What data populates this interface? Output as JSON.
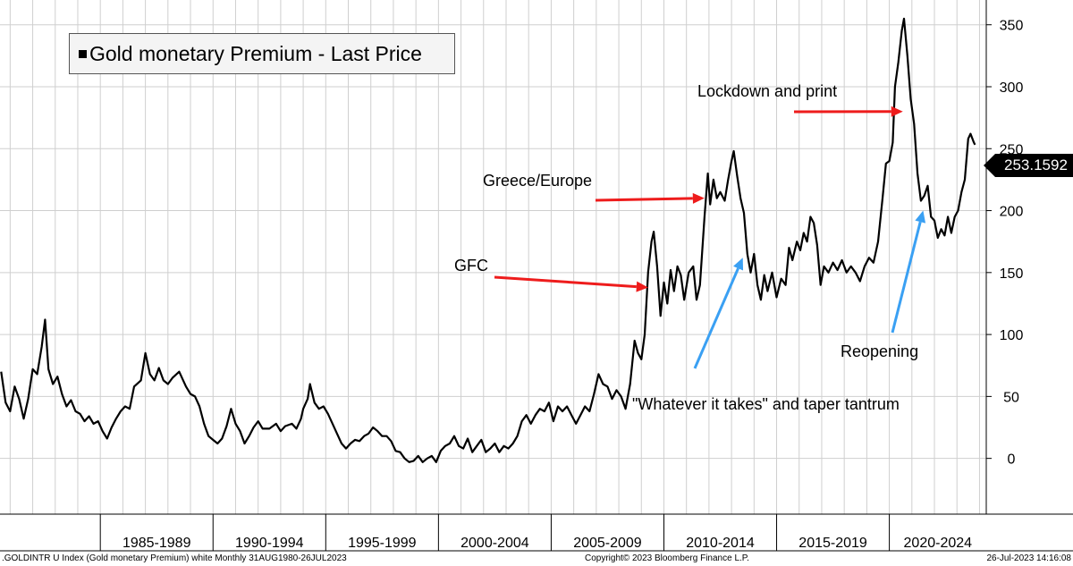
{
  "chart_data": {
    "type": "line",
    "title": "Gold monetary Premium - Last Price",
    "legend": "Gold monetary Premium - Last Price",
    "legend_position": "top-left",
    "ylim": [
      -45,
      370
    ],
    "xlim": [
      1980.55,
      2024.3
    ],
    "yticks": [
      0,
      50,
      100,
      150,
      200,
      250,
      300,
      350
    ],
    "ytick_labels": [
      "0",
      "50",
      "100",
      "150",
      "200",
      "250",
      "300",
      "350"
    ],
    "grid": true,
    "x_categories": [
      "1985-1989",
      "1990-1994",
      "1995-1999",
      "2000-2004",
      "2005-2009",
      "2010-2014",
      "2015-2019",
      "2020-2024"
    ],
    "x_category_starts": [
      1985,
      1990,
      1995,
      2000,
      2005,
      2010,
      2015,
      2020
    ],
    "last_value_label": "253.1592",
    "series": [
      {
        "name": "Gold monetary Premium",
        "points": [
          [
            1980.6,
            70
          ],
          [
            1980.8,
            45
          ],
          [
            1981.0,
            38
          ],
          [
            1981.2,
            58
          ],
          [
            1981.4,
            48
          ],
          [
            1981.6,
            32
          ],
          [
            1981.8,
            48
          ],
          [
            1982.0,
            72
          ],
          [
            1982.2,
            68
          ],
          [
            1982.4,
            90
          ],
          [
            1982.55,
            112
          ],
          [
            1982.7,
            72
          ],
          [
            1982.9,
            60
          ],
          [
            1983.1,
            66
          ],
          [
            1983.3,
            52
          ],
          [
            1983.5,
            42
          ],
          [
            1983.7,
            47
          ],
          [
            1983.9,
            38
          ],
          [
            1984.1,
            36
          ],
          [
            1984.3,
            30
          ],
          [
            1984.5,
            34
          ],
          [
            1984.7,
            28
          ],
          [
            1984.9,
            30
          ],
          [
            1985.1,
            22
          ],
          [
            1985.3,
            16
          ],
          [
            1985.5,
            25
          ],
          [
            1985.7,
            32
          ],
          [
            1985.9,
            38
          ],
          [
            1986.1,
            42
          ],
          [
            1986.3,
            40
          ],
          [
            1986.5,
            58
          ],
          [
            1986.8,
            63
          ],
          [
            1987.0,
            85
          ],
          [
            1987.2,
            68
          ],
          [
            1987.4,
            63
          ],
          [
            1987.6,
            73
          ],
          [
            1987.8,
            63
          ],
          [
            1988.0,
            60
          ],
          [
            1988.2,
            65
          ],
          [
            1988.5,
            70
          ],
          [
            1988.8,
            58
          ],
          [
            1989.0,
            52
          ],
          [
            1989.2,
            50
          ],
          [
            1989.4,
            42
          ],
          [
            1989.6,
            28
          ],
          [
            1989.8,
            18
          ],
          [
            1990.0,
            15
          ],
          [
            1990.2,
            12
          ],
          [
            1990.4,
            16
          ],
          [
            1990.6,
            26
          ],
          [
            1990.8,
            40
          ],
          [
            1991.0,
            28
          ],
          [
            1991.2,
            22
          ],
          [
            1991.4,
            12
          ],
          [
            1991.6,
            18
          ],
          [
            1991.8,
            25
          ],
          [
            1992.0,
            30
          ],
          [
            1992.2,
            24
          ],
          [
            1992.5,
            24
          ],
          [
            1992.8,
            28
          ],
          [
            1993.0,
            22
          ],
          [
            1993.2,
            26
          ],
          [
            1993.5,
            28
          ],
          [
            1993.7,
            24
          ],
          [
            1993.9,
            32
          ],
          [
            1994.0,
            40
          ],
          [
            1994.2,
            48
          ],
          [
            1994.3,
            60
          ],
          [
            1994.5,
            45
          ],
          [
            1994.7,
            40
          ],
          [
            1994.9,
            42
          ],
          [
            1995.1,
            36
          ],
          [
            1995.3,
            28
          ],
          [
            1995.5,
            20
          ],
          [
            1995.7,
            12
          ],
          [
            1995.9,
            8
          ],
          [
            1996.1,
            12
          ],
          [
            1996.3,
            15
          ],
          [
            1996.5,
            14
          ],
          [
            1996.7,
            18
          ],
          [
            1996.9,
            20
          ],
          [
            1997.1,
            25
          ],
          [
            1997.3,
            22
          ],
          [
            1997.5,
            18
          ],
          [
            1997.7,
            18
          ],
          [
            1997.9,
            14
          ],
          [
            1998.1,
            6
          ],
          [
            1998.3,
            5
          ],
          [
            1998.5,
            0
          ],
          [
            1998.7,
            -3
          ],
          [
            1998.9,
            -2
          ],
          [
            1999.1,
            2
          ],
          [
            1999.3,
            -3
          ],
          [
            1999.5,
            0
          ],
          [
            1999.7,
            2
          ],
          [
            1999.9,
            -3
          ],
          [
            2000.1,
            6
          ],
          [
            2000.3,
            10
          ],
          [
            2000.5,
            12
          ],
          [
            2000.7,
            18
          ],
          [
            2000.9,
            10
          ],
          [
            2001.1,
            8
          ],
          [
            2001.3,
            16
          ],
          [
            2001.5,
            5
          ],
          [
            2001.7,
            10
          ],
          [
            2001.9,
            15
          ],
          [
            2002.1,
            5
          ],
          [
            2002.3,
            8
          ],
          [
            2002.5,
            12
          ],
          [
            2002.7,
            5
          ],
          [
            2002.9,
            10
          ],
          [
            2003.1,
            8
          ],
          [
            2003.3,
            12
          ],
          [
            2003.5,
            18
          ],
          [
            2003.7,
            30
          ],
          [
            2003.9,
            35
          ],
          [
            2004.1,
            28
          ],
          [
            2004.3,
            35
          ],
          [
            2004.5,
            40
          ],
          [
            2004.7,
            38
          ],
          [
            2004.9,
            45
          ],
          [
            2005.1,
            30
          ],
          [
            2005.3,
            42
          ],
          [
            2005.5,
            38
          ],
          [
            2005.7,
            42
          ],
          [
            2005.9,
            35
          ],
          [
            2006.1,
            28
          ],
          [
            2006.3,
            35
          ],
          [
            2006.5,
            42
          ],
          [
            2006.7,
            38
          ],
          [
            2006.9,
            52
          ],
          [
            2007.1,
            68
          ],
          [
            2007.3,
            60
          ],
          [
            2007.5,
            58
          ],
          [
            2007.7,
            48
          ],
          [
            2007.9,
            55
          ],
          [
            2008.1,
            50
          ],
          [
            2008.3,
            40
          ],
          [
            2008.5,
            60
          ],
          [
            2008.7,
            95
          ],
          [
            2008.85,
            85
          ],
          [
            2009.0,
            80
          ],
          [
            2009.15,
            100
          ],
          [
            2009.3,
            150
          ],
          [
            2009.45,
            175
          ],
          [
            2009.55,
            183
          ],
          [
            2009.7,
            155
          ],
          [
            2009.85,
            115
          ],
          [
            2010.0,
            142
          ],
          [
            2010.15,
            125
          ],
          [
            2010.3,
            152
          ],
          [
            2010.45,
            135
          ],
          [
            2010.6,
            155
          ],
          [
            2010.75,
            148
          ],
          [
            2010.9,
            128
          ],
          [
            2011.1,
            150
          ],
          [
            2011.3,
            155
          ],
          [
            2011.45,
            128
          ],
          [
            2011.6,
            140
          ],
          [
            2011.8,
            195
          ],
          [
            2011.95,
            230
          ],
          [
            2012.05,
            205
          ],
          [
            2012.2,
            225
          ],
          [
            2012.35,
            210
          ],
          [
            2012.5,
            215
          ],
          [
            2012.7,
            208
          ],
          [
            2012.85,
            225
          ],
          [
            2013.0,
            240
          ],
          [
            2013.1,
            248
          ],
          [
            2013.25,
            228
          ],
          [
            2013.4,
            210
          ],
          [
            2013.55,
            198
          ],
          [
            2013.7,
            165
          ],
          [
            2013.85,
            150
          ],
          [
            2014.0,
            165
          ],
          [
            2014.15,
            140
          ],
          [
            2014.3,
            128
          ],
          [
            2014.45,
            148
          ],
          [
            2014.6,
            135
          ],
          [
            2014.8,
            150
          ],
          [
            2015.0,
            130
          ],
          [
            2015.2,
            145
          ],
          [
            2015.4,
            140
          ],
          [
            2015.55,
            170
          ],
          [
            2015.7,
            160
          ],
          [
            2015.9,
            175
          ],
          [
            2016.05,
            168
          ],
          [
            2016.2,
            182
          ],
          [
            2016.35,
            175
          ],
          [
            2016.5,
            195
          ],
          [
            2016.65,
            190
          ],
          [
            2016.8,
            172
          ],
          [
            2016.95,
            140
          ],
          [
            2017.1,
            155
          ],
          [
            2017.3,
            150
          ],
          [
            2017.5,
            158
          ],
          [
            2017.7,
            152
          ],
          [
            2017.9,
            160
          ],
          [
            2018.1,
            150
          ],
          [
            2018.3,
            155
          ],
          [
            2018.5,
            150
          ],
          [
            2018.7,
            143
          ],
          [
            2018.9,
            155
          ],
          [
            2019.1,
            162
          ],
          [
            2019.3,
            158
          ],
          [
            2019.5,
            175
          ],
          [
            2019.7,
            210
          ],
          [
            2019.85,
            238
          ],
          [
            2020.0,
            240
          ],
          [
            2020.15,
            255
          ],
          [
            2020.25,
            300
          ],
          [
            2020.4,
            320
          ],
          [
            2020.55,
            345
          ],
          [
            2020.65,
            355
          ],
          [
            2020.8,
            325
          ],
          [
            2020.95,
            290
          ],
          [
            2021.1,
            270
          ],
          [
            2021.25,
            230
          ],
          [
            2021.4,
            208
          ],
          [
            2021.55,
            212
          ],
          [
            2021.7,
            220
          ],
          [
            2021.85,
            195
          ],
          [
            2022.0,
            192
          ],
          [
            2022.15,
            178
          ],
          [
            2022.3,
            185
          ],
          [
            2022.45,
            180
          ],
          [
            2022.6,
            195
          ],
          [
            2022.75,
            182
          ],
          [
            2022.9,
            195
          ],
          [
            2023.05,
            200
          ],
          [
            2023.2,
            215
          ],
          [
            2023.35,
            225
          ],
          [
            2023.5,
            258
          ],
          [
            2023.6,
            262
          ],
          [
            2023.75,
            255
          ],
          [
            2023.8,
            253.16
          ]
        ]
      }
    ],
    "annotations": [
      {
        "text": "Lockdown and print",
        "color": "red",
        "arrow_to": [
          2020.6,
          280
        ]
      },
      {
        "text": "Greece/Europe",
        "color": "red",
        "arrow_to": [
          2011.8,
          210
        ]
      },
      {
        "text": "GFC",
        "color": "red",
        "arrow_to": [
          2009.3,
          138
        ]
      },
      {
        "text": "\"Whatever it takes\" and taper tantrum",
        "color": "blue",
        "arrow_to": [
          2013.5,
          162
        ]
      },
      {
        "text": "Reopening",
        "color": "blue",
        "arrow_to": [
          2021.5,
          200
        ]
      }
    ]
  },
  "footer": {
    "left": ".GOLDINTR U Index (Gold monetary Premium) white  Monthly 31AUG1980-26JUL2023",
    "center": "Copyright© 2023 Bloomberg Finance L.P.",
    "right": "26-Jul-2023 14:16:08"
  },
  "colors": {
    "line": "#000000",
    "grid": "#cfcfcf",
    "red_arrow": "#ee1c1c",
    "blue_arrow": "#3aa0f3"
  }
}
